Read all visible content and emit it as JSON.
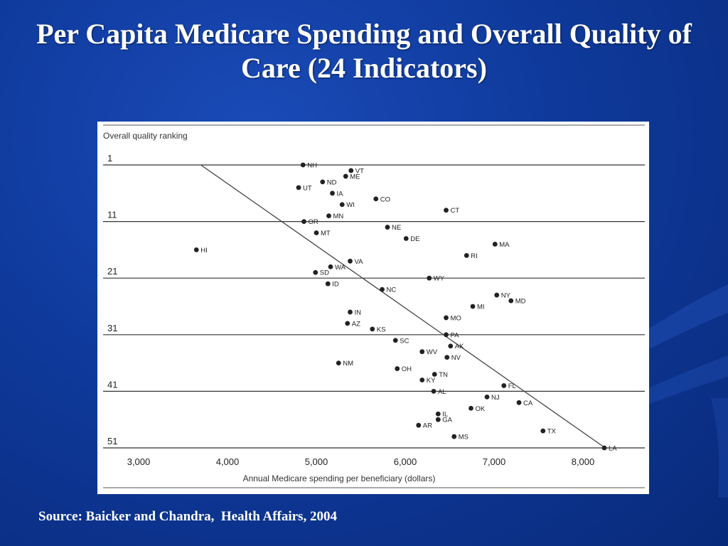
{
  "slide": {
    "title": "Per Capita Medicare Spending and Overall Quality of Care (24 Indicators)",
    "source": "Source: Baicker and Chandra,  Health Affairs, 2004",
    "colors": {
      "background": "#0f3a9c",
      "text": "#ffffff",
      "panel": "#ffffff",
      "marks": "#222222"
    }
  },
  "chart_data": {
    "type": "scatter",
    "ylabel": "Overall quality ranking",
    "xlabel": "Annual Medicare spending per beneficiary (dollars)",
    "x_ticks": [
      "3,000",
      "4,000",
      "5,000",
      "6,000",
      "7,000",
      "8,000"
    ],
    "y_ticks": [
      "1",
      "11",
      "21",
      "31",
      "41",
      "51"
    ],
    "xlim": [
      2500,
      8400
    ],
    "ylim": [
      1,
      51
    ],
    "y_inverted": true,
    "grid": "horizontal",
    "trendline": {
      "from": [
        3700,
        1
      ],
      "to": [
        8250,
        51
      ]
    },
    "points": [
      {
        "label": "NH",
        "x": 4850,
        "y": 1
      },
      {
        "label": "VT",
        "x": 5390,
        "y": 2
      },
      {
        "label": "ME",
        "x": 5330,
        "y": 3
      },
      {
        "label": "ND",
        "x": 5070,
        "y": 4
      },
      {
        "label": "UT",
        "x": 4800,
        "y": 5
      },
      {
        "label": "IA",
        "x": 5180,
        "y": 6
      },
      {
        "label": "CO",
        "x": 5670,
        "y": 7
      },
      {
        "label": "WI",
        "x": 5290,
        "y": 8
      },
      {
        "label": "CT",
        "x": 6460,
        "y": 9
      },
      {
        "label": "MN",
        "x": 5140,
        "y": 10
      },
      {
        "label": "OR",
        "x": 4860,
        "y": 11
      },
      {
        "label": "NE",
        "x": 5800,
        "y": 12
      },
      {
        "label": "MT",
        "x": 5000,
        "y": 13
      },
      {
        "label": "DE",
        "x": 6010,
        "y": 14
      },
      {
        "label": "MA",
        "x": 7010,
        "y": 15
      },
      {
        "label": "HI",
        "x": 3650,
        "y": 16
      },
      {
        "label": "RI",
        "x": 6690,
        "y": 17
      },
      {
        "label": "VA",
        "x": 5380,
        "y": 18
      },
      {
        "label": "WA",
        "x": 5160,
        "y": 19
      },
      {
        "label": "SD",
        "x": 4990,
        "y": 20
      },
      {
        "label": "WY",
        "x": 6270,
        "y": 21
      },
      {
        "label": "ID",
        "x": 5130,
        "y": 22
      },
      {
        "label": "NC",
        "x": 5740,
        "y": 23
      },
      {
        "label": "NY",
        "x": 7030,
        "y": 24
      },
      {
        "label": "MD",
        "x": 7190,
        "y": 25
      },
      {
        "label": "MI",
        "x": 6760,
        "y": 26
      },
      {
        "label": "IN",
        "x": 5380,
        "y": 27
      },
      {
        "label": "MO",
        "x": 6460,
        "y": 28
      },
      {
        "label": "AZ",
        "x": 5350,
        "y": 29
      },
      {
        "label": "KS",
        "x": 5630,
        "y": 30
      },
      {
        "label": "PA",
        "x": 6460,
        "y": 31
      },
      {
        "label": "SC",
        "x": 5890,
        "y": 32
      },
      {
        "label": "AK",
        "x": 6510,
        "y": 33
      },
      {
        "label": "WV",
        "x": 6190,
        "y": 34
      },
      {
        "label": "NV",
        "x": 6470,
        "y": 35
      },
      {
        "label": "NM",
        "x": 5250,
        "y": 36
      },
      {
        "label": "OH",
        "x": 5910,
        "y": 37
      },
      {
        "label": "TN",
        "x": 6330,
        "y": 38
      },
      {
        "label": "KY",
        "x": 6190,
        "y": 39
      },
      {
        "label": "FL",
        "x": 7110,
        "y": 40
      },
      {
        "label": "AL",
        "x": 6320,
        "y": 41
      },
      {
        "label": "NJ",
        "x": 6920,
        "y": 42
      },
      {
        "label": "CA",
        "x": 7280,
        "y": 43
      },
      {
        "label": "OK",
        "x": 6740,
        "y": 44
      },
      {
        "label": "IL",
        "x": 6370,
        "y": 45
      },
      {
        "label": "GA",
        "x": 6370,
        "y": 46
      },
      {
        "label": "AR",
        "x": 6150,
        "y": 47
      },
      {
        "label": "TX",
        "x": 7550,
        "y": 48
      },
      {
        "label": "MS",
        "x": 6550,
        "y": 49
      },
      {
        "label": "LA",
        "x": 8240,
        "y": 51
      }
    ]
  }
}
